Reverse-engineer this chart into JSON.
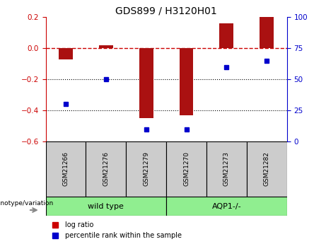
{
  "title": "GDS899 / H3120H01",
  "categories": [
    "GSM21266",
    "GSM21276",
    "GSM21279",
    "GSM21270",
    "GSM21273",
    "GSM21282"
  ],
  "log_ratio": [
    -0.07,
    0.02,
    -0.45,
    -0.43,
    0.16,
    0.2
  ],
  "percentile_rank": [
    30,
    50,
    10,
    10,
    60,
    65
  ],
  "bar_color": "#aa1111",
  "dot_color": "#0000cc",
  "ylim_left": [
    -0.6,
    0.2
  ],
  "ylim_right": [
    0,
    100
  ],
  "yticks_left": [
    -0.6,
    -0.4,
    -0.2,
    0.0,
    0.2
  ],
  "yticks_right": [
    0,
    25,
    50,
    75,
    100
  ],
  "group_box_color": "#cccccc",
  "group_label_color": "#90ee90",
  "dashed_line_color": "#cc0000",
  "dotted_line_color": "#000000",
  "left_axis_color": "#cc0000",
  "right_axis_color": "#0000cc",
  "legend_log_ratio_color": "#cc0000",
  "legend_dot_color": "#0000cc",
  "genotype_label": "genotype/variation",
  "arrow_color": "#888888",
  "bar_width": 0.35,
  "wild_type_label": "wild type",
  "aqp_label": "AQP1-/-"
}
